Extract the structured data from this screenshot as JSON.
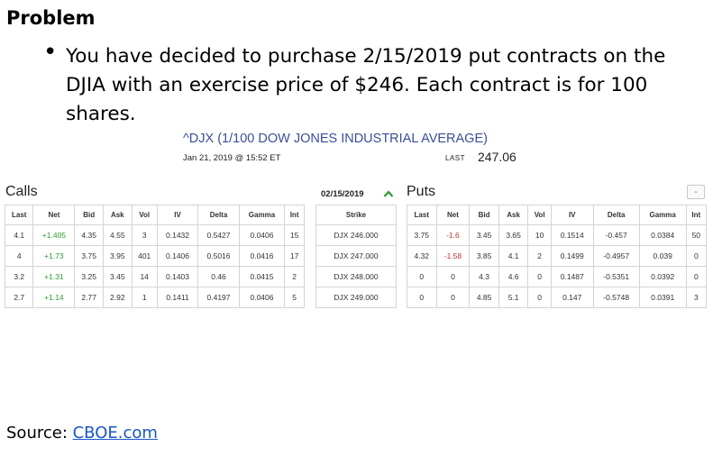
{
  "slide": {
    "title": "Problem",
    "bullet_glyph": "•",
    "bullet_text": "You have decided to purchase 2/15/2019  put contracts on the DJIA with an exercise price of $246. Each contract is for 100 shares.",
    "source_label": "Source: ",
    "source_link": "CBOE.com"
  },
  "quote": {
    "name": "^DJX (1/100 DOW JONES INDUSTRIAL AVERAGE)",
    "datetime": "Jan 21, 2019 @ 15:52 ET",
    "last_label": "LAST",
    "last_value": "247.06"
  },
  "chain": {
    "calls_label": "Calls",
    "puts_label": "Puts",
    "expiry": "02/15/2019",
    "collapse_symbol": "-",
    "calls_headers": [
      "Last",
      "Net",
      "Bid",
      "Ask",
      "Vol",
      "IV",
      "Delta",
      "Gamma",
      "Int"
    ],
    "strike_header": "Strike",
    "puts_headers": [
      "Last",
      "Net",
      "Bid",
      "Ask",
      "Vol",
      "IV",
      "Delta",
      "Gamma",
      "Int"
    ],
    "rows": [
      {
        "call": [
          "4.1",
          "+1.405",
          "4.35",
          "4.55",
          "3",
          "0.1432",
          "0.5427",
          "0.0406",
          "15"
        ],
        "strike": "DJX 246.000",
        "put": [
          "3.75",
          "-1.6",
          "3.45",
          "3.65",
          "10",
          "0.1514",
          "-0.457",
          "0.0384",
          "50"
        ]
      },
      {
        "call": [
          "4",
          "+1.73",
          "3.75",
          "3.95",
          "401",
          "0.1406",
          "0.5016",
          "0.0416",
          "17"
        ],
        "strike": "DJX 247.000",
        "put": [
          "4.32",
          "-1.58",
          "3.85",
          "4.1",
          "2",
          "0.1499",
          "-0.4957",
          "0.039",
          "0"
        ]
      },
      {
        "call": [
          "3.2",
          "+1.31",
          "3.25",
          "3.45",
          "14",
          "0.1403",
          "0.46",
          "0.0415",
          "2"
        ],
        "strike": "DJX 248.000",
        "put": [
          "0",
          "0",
          "4.3",
          "4.6",
          "0",
          "0.1487",
          "-0.5351",
          "0.0392",
          "0"
        ]
      },
      {
        "call": [
          "2.7",
          "+1.14",
          "2.77",
          "2.92",
          "1",
          "0.1411",
          "0.4197",
          "0.0406",
          "5"
        ],
        "strike": "DJX 249.000",
        "put": [
          "0",
          "0",
          "4.85",
          "5.1",
          "0",
          "0.147",
          "-0.5748",
          "0.0391",
          "3"
        ]
      }
    ],
    "colors": {
      "positive": "#2e9a2e",
      "negative": "#c83030",
      "header_link": "#3b4f9a"
    }
  }
}
